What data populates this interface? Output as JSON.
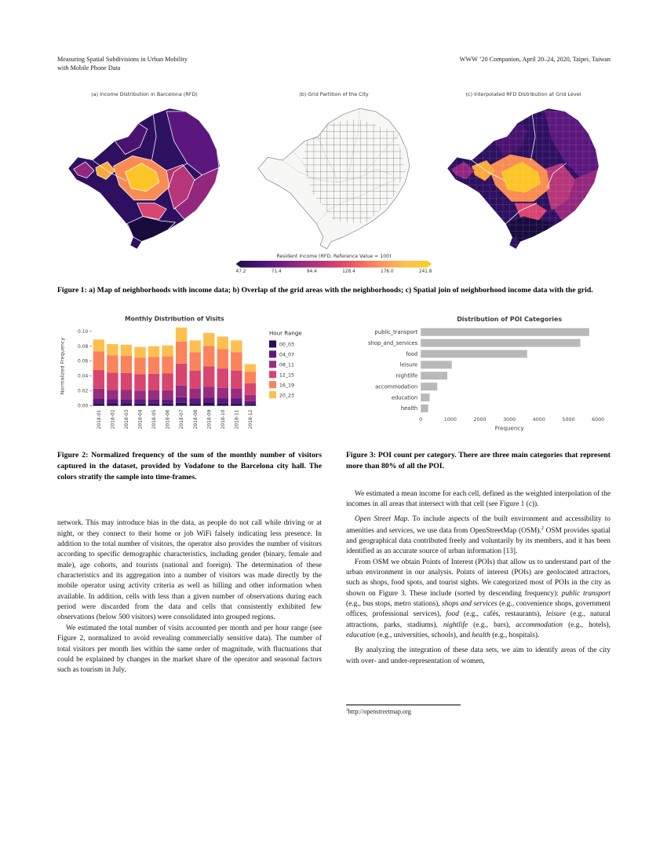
{
  "header": {
    "left_line1": "Measuring Spatial Subdivisions in Urban Mobility",
    "left_line2": "with Mobile Phone Data",
    "right": "WWW ’20 Companion, April 20–24, 2020, Taipei, Taiwan"
  },
  "figure1": {
    "panels": {
      "a_title": "(a) Income Distribution in Barcelona (RFD)",
      "b_title": "(b) Grid Partition of the City",
      "c_title": "(c) Interpolated RFD Distribution at Grid Level"
    },
    "colorbar": {
      "title": "Resident Income (RFD, Reference Value = 100)",
      "ticks": [
        "47.2",
        "71.4",
        "94.4",
        "128.4",
        "176.0",
        "241.8"
      ],
      "gradient": [
        "#1c1044",
        "#51127c",
        "#822681",
        "#b63679",
        "#e65164",
        "#fb8861",
        "#fdc050",
        "#fcce25"
      ]
    },
    "caption": "Figure 1: a) Map of neighborhoods with income data; b) Overlap of the grid areas with the neighborhoods; c) Spatial join of neighborhood income data with the grid."
  },
  "figure2": {
    "caption": "Figure 2: Normalized frequency of the sum of the monthly number of visitors captured in the dataset, provided by Vodafone to the Barcelona city hall. The colors stratify the sample into time-frames."
  },
  "figure3": {
    "caption": "Figure 3: POI count per category. There are three main categories that represent more than 80% of all the POI."
  },
  "chart_data": [
    {
      "type": "bar",
      "stacked": true,
      "title": "Monthly Distribution of Visits",
      "ylabel": "Normalized Frequency",
      "xlabel": "",
      "legend_title": "Hour Range",
      "legend_position": "right",
      "ylim": [
        0,
        0.1
      ],
      "yticks": [
        0.0,
        0.02,
        0.04,
        0.06,
        0.08,
        0.1
      ],
      "categories": [
        "2018-01",
        "2018-02",
        "2018-03",
        "2018-04",
        "2018-05",
        "2018-06",
        "2018-07",
        "2018-08",
        "2018-09",
        "2018-10",
        "2018-11",
        "2018-12"
      ],
      "series": [
        {
          "name": "00_03",
          "color": "#24105a",
          "values": [
            0.0036,
            0.0033,
            0.0033,
            0.0032,
            0.0032,
            0.0032,
            0.0042,
            0.0035,
            0.0039,
            0.0037,
            0.0035,
            0.0022
          ]
        },
        {
          "name": "04_07",
          "color": "#5f187f",
          "values": [
            0.0062,
            0.0058,
            0.0057,
            0.0055,
            0.0056,
            0.0057,
            0.0074,
            0.0062,
            0.0069,
            0.0065,
            0.0062,
            0.0039
          ]
        },
        {
          "name": "08_11",
          "color": "#982d80",
          "values": [
            0.0134,
            0.0125,
            0.0123,
            0.0119,
            0.012,
            0.0122,
            0.0158,
            0.0132,
            0.0147,
            0.014,
            0.0132,
            0.0084
          ]
        },
        {
          "name": "12_15",
          "color": "#d8456f",
          "values": [
            0.0249,
            0.0232,
            0.023,
            0.0221,
            0.0224,
            0.0227,
            0.0294,
            0.0246,
            0.0274,
            0.026,
            0.0246,
            0.0157
          ]
        },
        {
          "name": "16_19",
          "color": "#f9845c",
          "values": [
            0.0249,
            0.0232,
            0.023,
            0.0221,
            0.0224,
            0.0227,
            0.0294,
            0.0246,
            0.0274,
            0.026,
            0.0246,
            0.0157
          ]
        },
        {
          "name": "20_23",
          "color": "#fdc050",
          "values": [
            0.016,
            0.0149,
            0.0148,
            0.0142,
            0.0144,
            0.0146,
            0.0189,
            0.0158,
            0.0176,
            0.0167,
            0.0158,
            0.0101
          ]
        }
      ]
    },
    {
      "type": "bar",
      "orientation": "horizontal",
      "title": "Distribution of POI Categories",
      "xlabel": "Frequency",
      "ylabel": "",
      "xlim": [
        0,
        6000
      ],
      "xticks": [
        0,
        1000,
        2000,
        3000,
        4000,
        5000,
        6000
      ],
      "bar_color": "#b9b9b9",
      "categories": [
        "public_transport",
        "shop_and_services",
        "food",
        "leisure",
        "nightlife",
        "accommodation",
        "education",
        "health"
      ],
      "values": [
        5700,
        5400,
        3600,
        1050,
        900,
        560,
        300,
        250
      ]
    }
  ],
  "body": {
    "left": {
      "p1": "network. This may introduce bias in the data, as people do not call while driving or at night, or they connect to their home or job WiFi falsely indicating less presence. In addition to the total number of visitors, the operator also provides the number of visitors according to specific demographic characteristics, including gender (binary, female and male), age cohorts, and tourists (national and foreign). The determination of these characteristics and its aggregation into a number of visitors was made directly by the mobile operator using activity criteria as well as billing and other information when available. In addition, cells with less than a given number of observations during each period were discarded from the data and cells that consistently exhibited few observations (below 500 visitors) were consolidated into grouped regions.",
      "p2": "We estimated the total number of visits accounted per month and per hour range (see Figure 2, normalized to avoid revealing commercially sensitive data). The number of total visitors per month lies within the same order of magnitude, with fluctuations that could be explained by changes in the market share of the operator and seasonal factors such as tourism in July."
    },
    "right": {
      "p1": "We estimated a mean income for each cell, defined as the weighted interpolation of the incomes in all areas that intersect with that cell (see Figure 1 (c)).",
      "p2": "<i>Open Street Map.</i> To include aspects of the built environment and accessibility to amenities and services, we use data from OpenStreetMap (OSM).<sup>2</sup> OSM provides spatial and geographical data contributed freely and voluntarily by its members, and it has been identified as an accurate source of urban information [13].",
      "p3": "From OSM we obtain Points of Interest (POIs) that allow us to understand part of the urban environment in our analysis. Points of interest (POIs) are geolocated attractors, such as shops, food spots, and tourist sights. We categorized most of POIs in the city as shown on Figure 3. These include (sorted by descending frequency): <i>public transport</i> (e.g., bus stops, metro stations), <i>shops and services</i> (e.g., convenience shops, government offices, professional services), <i>food</i> (e.g., cafés, restaurants), <i>leisure</i> (e.g., natural attractions, parks, stadiums), <i>nightlife</i> (e.g., bars), <i>accommodation</i> (e.g., hotels), <i>education</i> (e.g., universities, schools), and <i>health</i> (e.g., hospitals).",
      "p4": "By analyzing the integration of these data sets, we aim to identify areas of the city with over- and under-representation of women,"
    }
  },
  "footnote": {
    "marker": "2",
    "url": "http://openstreetmap.org"
  }
}
